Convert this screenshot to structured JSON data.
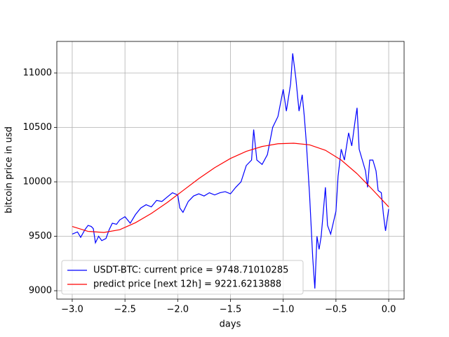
{
  "chart_data": {
    "type": "line",
    "xlabel": "days",
    "ylabel": "bitcoin price in usd",
    "xlim": [
      -3.146,
      0.146
    ],
    "ylim": [
      8923,
      11290
    ],
    "xticks": [
      {
        "value": -3.0,
        "label": "−3.0"
      },
      {
        "value": -2.5,
        "label": "−2.5"
      },
      {
        "value": -2.0,
        "label": "−2.0"
      },
      {
        "value": -1.5,
        "label": "−1.5"
      },
      {
        "value": -1.0,
        "label": "−1.0"
      },
      {
        "value": -0.5,
        "label": "−0.5"
      },
      {
        "value": 0.0,
        "label": "0.0"
      }
    ],
    "yticks": [
      9000,
      9500,
      10000,
      10500,
      11000
    ],
    "grid": true,
    "legend": "lower left",
    "series": [
      {
        "name": "USDT-BTC: current price = 9748.71010285",
        "color": "#0000ff",
        "x": [
          -3.0,
          -2.95,
          -2.92,
          -2.88,
          -2.85,
          -2.82,
          -2.8,
          -2.78,
          -2.75,
          -2.72,
          -2.68,
          -2.65,
          -2.62,
          -2.58,
          -2.55,
          -2.5,
          -2.45,
          -2.4,
          -2.35,
          -2.3,
          -2.25,
          -2.2,
          -2.15,
          -2.1,
          -2.05,
          -2.0,
          -1.98,
          -1.95,
          -1.9,
          -1.85,
          -1.8,
          -1.75,
          -1.7,
          -1.65,
          -1.6,
          -1.55,
          -1.5,
          -1.45,
          -1.4,
          -1.35,
          -1.3,
          -1.28,
          -1.25,
          -1.2,
          -1.15,
          -1.1,
          -1.05,
          -1.0,
          -0.97,
          -0.93,
          -0.91,
          -0.88,
          -0.85,
          -0.82,
          -0.8,
          -0.78,
          -0.75,
          -0.72,
          -0.7,
          -0.68,
          -0.66,
          -0.64,
          -0.6,
          -0.58,
          -0.55,
          -0.5,
          -0.48,
          -0.45,
          -0.42,
          -0.38,
          -0.35,
          -0.32,
          -0.3,
          -0.28,
          -0.25,
          -0.22,
          -0.2,
          -0.18,
          -0.15,
          -0.12,
          -0.1,
          -0.07,
          -0.05,
          -0.03,
          0.0
        ],
        "values": [
          9520,
          9540,
          9490,
          9560,
          9600,
          9590,
          9570,
          9440,
          9500,
          9460,
          9480,
          9560,
          9620,
          9610,
          9650,
          9680,
          9620,
          9700,
          9760,
          9790,
          9770,
          9830,
          9820,
          9860,
          9900,
          9880,
          9760,
          9720,
          9820,
          9870,
          9890,
          9870,
          9900,
          9880,
          9900,
          9910,
          9890,
          9950,
          10000,
          10150,
          10200,
          10480,
          10200,
          10160,
          10250,
          10500,
          10600,
          10850,
          10650,
          10900,
          11180,
          10950,
          10650,
          10800,
          10600,
          10350,
          9880,
          9300,
          9020,
          9500,
          9380,
          9500,
          9950,
          9600,
          9520,
          9730,
          10050,
          10300,
          10200,
          10450,
          10330,
          10550,
          10680,
          10300,
          10200,
          10100,
          9950,
          10200,
          10200,
          10100,
          9920,
          9900,
          9700,
          9550,
          9750
        ]
      },
      {
        "name": "predict price [next 12h] = 9221.6213888",
        "color": "#ff0000",
        "x": [
          -3.0,
          -2.85,
          -2.7,
          -2.55,
          -2.4,
          -2.25,
          -2.1,
          -1.95,
          -1.8,
          -1.65,
          -1.5,
          -1.35,
          -1.2,
          -1.05,
          -0.9,
          -0.75,
          -0.6,
          -0.45,
          -0.3,
          -0.15,
          0.0
        ],
        "values": [
          9590,
          9545,
          9535,
          9560,
          9625,
          9710,
          9810,
          9920,
          10030,
          10130,
          10215,
          10280,
          10325,
          10350,
          10355,
          10340,
          10290,
          10200,
          10075,
          9925,
          9770
        ]
      }
    ]
  }
}
